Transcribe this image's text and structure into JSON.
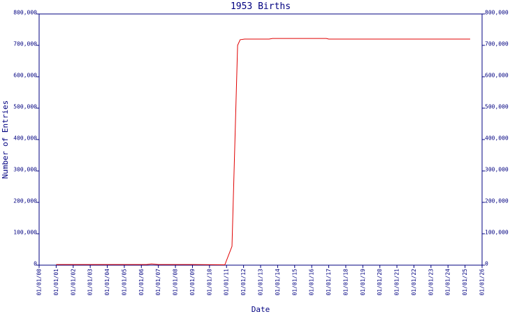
{
  "chart_data": {
    "type": "line",
    "title": "1953 Births",
    "x_label": "Date",
    "y_label": "Number of Entries",
    "color": "#e00000",
    "axis_color": "#000080",
    "x": [
      2001,
      2003,
      2005,
      2006.3,
      2006.6,
      2007,
      2009,
      2010.9,
      2011.32,
      2011.65,
      2011.8,
      2012.06,
      2013.5,
      2013.7,
      2016.86,
      2017,
      2020,
      2025.3
    ],
    "values": [
      2000,
      2000,
      2000,
      2000,
      4000,
      2000,
      2000,
      1000,
      60000,
      700000,
      718000,
      720000,
      720000,
      722000,
      722000,
      720000,
      720000,
      720000
    ],
    "xlim": [
      2000,
      2026
    ],
    "xticks": [
      {
        "value": 2000,
        "label": "01/01/00"
      },
      {
        "value": 2001,
        "label": "01/01/01"
      },
      {
        "value": 2002,
        "label": "01/01/02"
      },
      {
        "value": 2003,
        "label": "01/01/03"
      },
      {
        "value": 2004,
        "label": "01/01/04"
      },
      {
        "value": 2005,
        "label": "01/01/05"
      },
      {
        "value": 2006,
        "label": "01/01/06"
      },
      {
        "value": 2007,
        "label": "01/01/07"
      },
      {
        "value": 2008,
        "label": "01/01/08"
      },
      {
        "value": 2009,
        "label": "01/01/09"
      },
      {
        "value": 2010,
        "label": "01/01/10"
      },
      {
        "value": 2011,
        "label": "01/01/11"
      },
      {
        "value": 2012,
        "label": "01/01/12"
      },
      {
        "value": 2013,
        "label": "01/01/13"
      },
      {
        "value": 2014,
        "label": "01/01/14"
      },
      {
        "value": 2015,
        "label": "01/01/15"
      },
      {
        "value": 2016,
        "label": "01/01/16"
      },
      {
        "value": 2017,
        "label": "01/01/17"
      },
      {
        "value": 2018,
        "label": "01/01/18"
      },
      {
        "value": 2019,
        "label": "01/01/19"
      },
      {
        "value": 2020,
        "label": "01/01/20"
      },
      {
        "value": 2021,
        "label": "01/01/21"
      },
      {
        "value": 2022,
        "label": "01/01/22"
      },
      {
        "value": 2023,
        "label": "01/01/23"
      },
      {
        "value": 2024,
        "label": "01/01/24"
      },
      {
        "value": 2025,
        "label": "01/01/25"
      },
      {
        "value": 2026,
        "label": "01/01/26"
      }
    ],
    "ylim": [
      0,
      800000
    ],
    "yticks": [
      0,
      {
        "value": 100000,
        "label": "100,000"
      },
      {
        "value": 200000,
        "label": "200,000"
      },
      {
        "value": 300000,
        "label": "300,000"
      },
      {
        "value": 400000,
        "label": "400,000"
      },
      {
        "value": 500000,
        "label": "500,000"
      },
      {
        "value": 600000,
        "label": "600,000"
      },
      {
        "value": 700000,
        "label": "700,000"
      },
      {
        "value": 800000,
        "label": "800,000"
      }
    ],
    "y2lim": [
      0,
      800000
    ],
    "y2ticks": [
      0,
      {
        "value": 100000,
        "label": "100,000"
      },
      {
        "value": 200000,
        "label": "200,000"
      },
      {
        "value": 300000,
        "label": "300,000"
      },
      {
        "value": 400000,
        "label": "400,000"
      },
      {
        "value": 500000,
        "label": "500,000"
      },
      {
        "value": 600000,
        "label": "600,000"
      },
      {
        "value": 700000,
        "label": "700,000"
      },
      {
        "value": 800000,
        "label": "800,000"
      }
    ]
  }
}
